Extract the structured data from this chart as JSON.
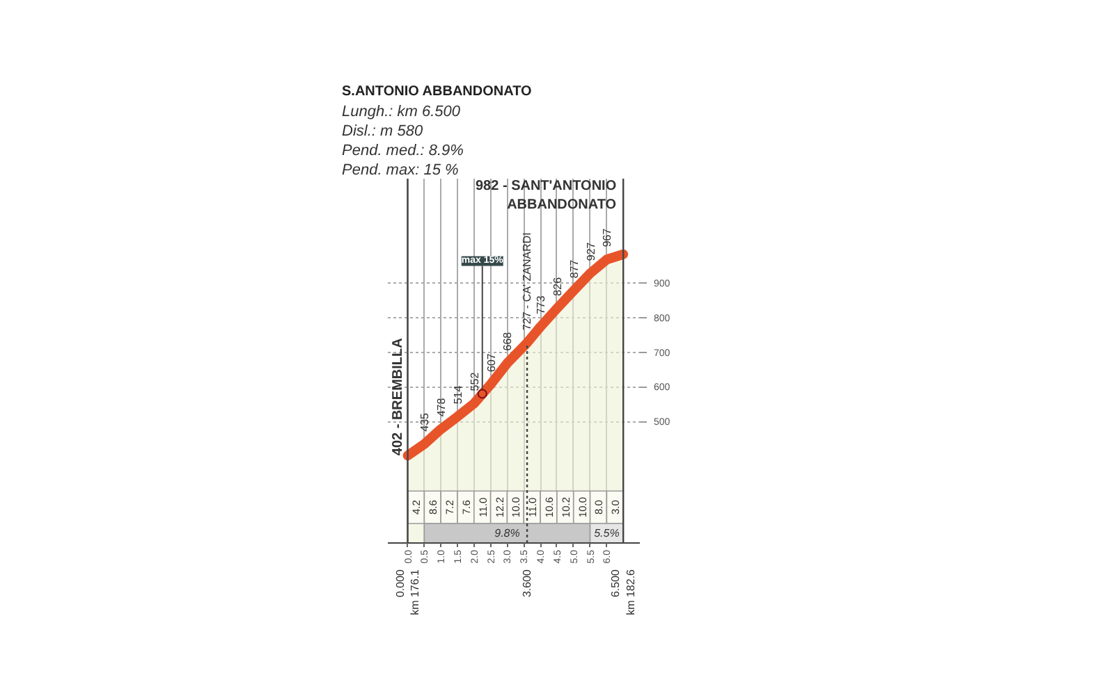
{
  "chart_data": {
    "type": "area",
    "title": "S.ANTONIO ABBANDONATO",
    "annotations": [
      "Lungh.: km 6.500",
      "Disl.: m 580",
      "Pend. med.: 8.9%",
      "Pend. max: 15 %",
      {
        "text": "max 15%",
        "x": 2.25,
        "y": 580
      }
    ],
    "x": [
      0,
      0.5,
      1,
      1.5,
      2,
      2.5,
      3,
      3.6,
      4,
      4.5,
      5,
      5.5,
      6,
      6.5
    ],
    "series": [
      {
        "color": "#e8542a",
        "values": [
          402,
          435,
          478,
          514,
          552,
          607,
          668,
          727,
          773,
          826,
          877,
          927,
          967,
          982
        ],
        "value_labels": [
          "402 - BREMBILLA",
          "435",
          "478",
          "514",
          "552",
          "607",
          "668",
          "727 - CA' ZANARDI",
          "773",
          "826",
          "877",
          "927",
          "967",
          "982 - SANT'ANTONIO\nABBANDONATO"
        ]
      }
    ],
    "xlim": [
      -0.6,
      7.0
    ],
    "xticks": [
      {
        "value": 0,
        "label": "0.0"
      },
      0.5,
      {
        "value": 1,
        "label": "1.0"
      },
      1.5,
      {
        "value": 2,
        "label": "2.0"
      },
      2.5,
      {
        "value": 3,
        "label": "3.0"
      },
      3.5,
      {
        "value": 4,
        "label": "4.0"
      },
      4.5,
      {
        "value": 5,
        "label": "5.0"
      },
      5.5,
      {
        "value": 6,
        "label": "6.0"
      }
    ],
    "ylim": [
      150,
      1200
    ],
    "yticks": [
      500,
      600,
      700,
      800,
      900
    ],
    "grid": true,
    "ref_lines": [
      {
        "axis": "x",
        "value": 0,
        "label": "0.000\nkm 176.1"
      },
      {
        "axis": "x",
        "value": 3.6,
        "label": "3.600",
        "line_style": "dotted"
      },
      {
        "axis": "x",
        "value": 6.5,
        "label": "6.500\nkm 182.6"
      }
    ],
    "bands": [
      {
        "axis": "x",
        "from": 0,
        "to": 0.5,
        "label": "4.2"
      },
      {
        "axis": "x",
        "from": 0.5,
        "to": 1,
        "label": "8.6"
      },
      {
        "axis": "x",
        "from": 1,
        "to": 1.5,
        "label": "7.2"
      },
      {
        "axis": "x",
        "from": 1.5,
        "to": 2,
        "label": "7.6"
      },
      {
        "axis": "x",
        "from": 2,
        "to": 2.5,
        "label": "11.0"
      },
      {
        "axis": "x",
        "from": 2.5,
        "to": 3,
        "label": "12.2"
      },
      {
        "axis": "x",
        "from": 3,
        "to": 3.5,
        "label": "10.0"
      },
      {
        "axis": "x",
        "from": 3.5,
        "to": 4,
        "label": "11.0"
      },
      {
        "axis": "x",
        "from": 4,
        "to": 4.5,
        "label": "10.6"
      },
      {
        "axis": "x",
        "from": 4.5,
        "to": 5,
        "label": "10.2"
      },
      {
        "axis": "x",
        "from": 5,
        "to": 5.5,
        "label": "10.0"
      },
      {
        "axis": "x",
        "from": 5.5,
        "to": 6,
        "label": "8.0"
      },
      {
        "axis": "x",
        "from": 6,
        "to": 6.5,
        "label": "3.0"
      },
      {
        "axis": "x",
        "from": 0.5,
        "to": 5.5,
        "label": "9.8%",
        "color": "#c8c8c8"
      },
      {
        "axis": "x",
        "from": 5.5,
        "to": 6.5,
        "label": "5.5%",
        "color": "#e6e6e6"
      }
    ]
  }
}
